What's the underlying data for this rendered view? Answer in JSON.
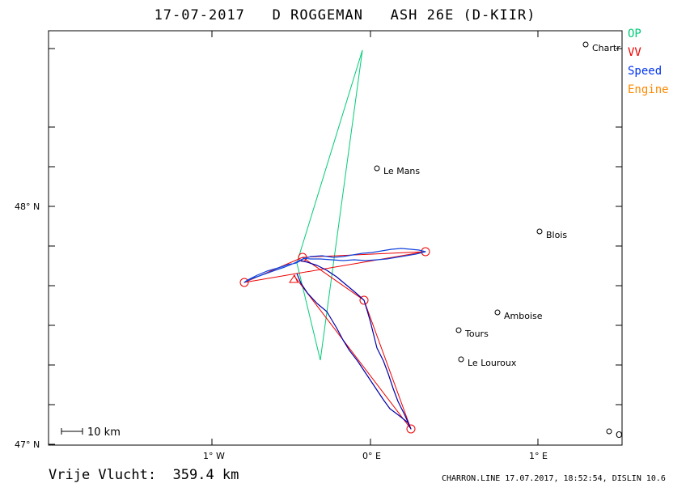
{
  "title": "17-07-2017   D ROGGEMAN   ASH 26E (D-KIIR)",
  "legend": [
    {
      "label": "OP",
      "color": "#00cc77"
    },
    {
      "label": "VV",
      "color": "#ee0000"
    },
    {
      "label": "Speed",
      "color": "#0033ee"
    },
    {
      "label": "Engine",
      "color": "#ff8800"
    }
  ],
  "axes": {
    "y_ticks": [
      "48° N",
      "47° N"
    ],
    "x_ticks": [
      "1° W",
      "0° E",
      "1° E"
    ]
  },
  "scale_bar": "10 km",
  "places": [
    "Chartr",
    "Le Mans",
    "Blois",
    "Amboise",
    "Tours",
    "Le Louroux",
    "O"
  ],
  "footer": {
    "distance": "Vrije Vlucht:  359.4 km",
    "credit": "CHARRON.LINE 17.07.2017, 18:52:54, DISLIN 10.6"
  },
  "colors": {
    "op": "#00cc77",
    "vv": "#ee0000",
    "track": "#0000aa",
    "speed": "#0033ee",
    "frame": "#000000"
  }
}
